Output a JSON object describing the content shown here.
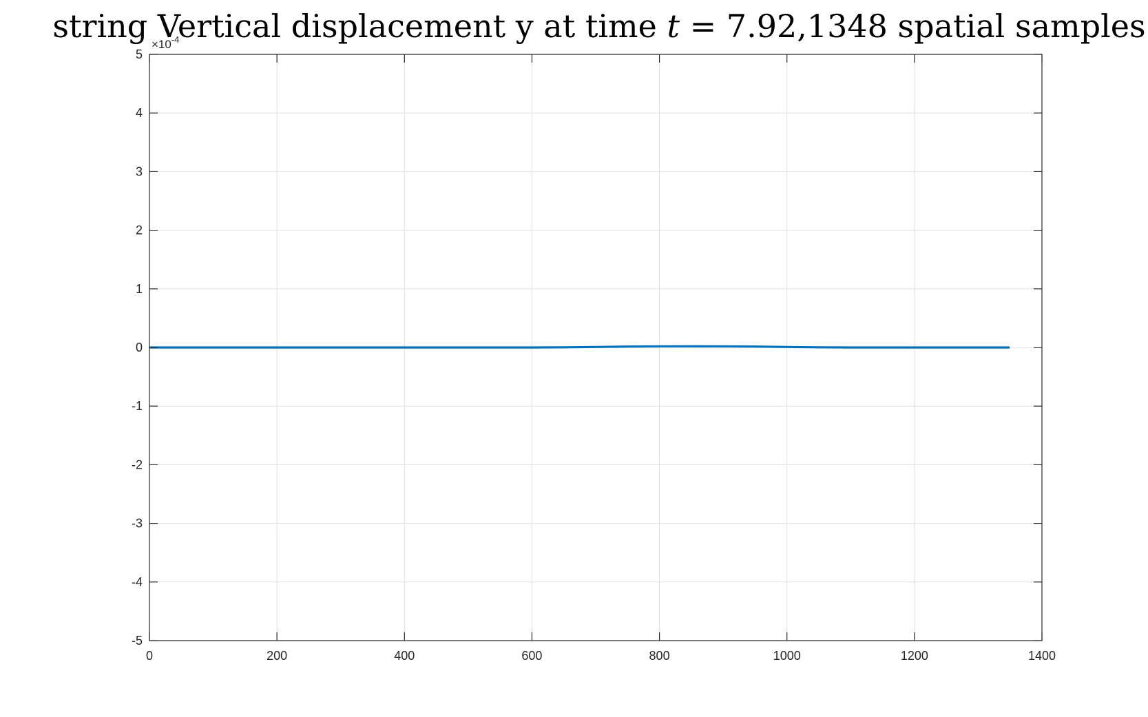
{
  "chart_data": {
    "type": "line",
    "title_prefix": "string Vertical displacement y at time ",
    "title_var": "t",
    "title_suffix": " = 7.92,1348 spatial samples",
    "xlabel": "",
    "ylabel": "",
    "xlim": [
      0,
      1400
    ],
    "ylim": [
      -5,
      5
    ],
    "y_exponent_label": "×10",
    "y_exponent_power": "-4",
    "grid": true,
    "legend": "none",
    "line_color": "#0072BD",
    "x_ticks": [
      0,
      200,
      400,
      600,
      800,
      1000,
      1200,
      1400
    ],
    "x_tick_labels": [
      "0",
      "200",
      "400",
      "600",
      "800",
      "1000",
      "1200",
      "1400"
    ],
    "y_ticks": [
      -5,
      -4,
      -3,
      -2,
      -1,
      0,
      1,
      2,
      3,
      4,
      5
    ],
    "y_tick_labels": [
      "-5",
      "-4",
      "-3",
      "-2",
      "-1",
      "0",
      "1",
      "2",
      "3",
      "4",
      "5"
    ],
    "series": [
      {
        "x": [
          1,
          100,
          200,
          300,
          400,
          500,
          600,
          650,
          700,
          750,
          800,
          850,
          900,
          950,
          1000,
          1050,
          1100,
          1200,
          1300,
          1348
        ],
        "y": [
          0,
          0,
          0,
          0,
          0,
          0,
          0,
          0.002,
          0.008,
          0.016,
          0.02,
          0.021,
          0.02,
          0.016,
          0.008,
          0.002,
          0,
          0,
          0,
          0
        ]
      }
    ]
  }
}
